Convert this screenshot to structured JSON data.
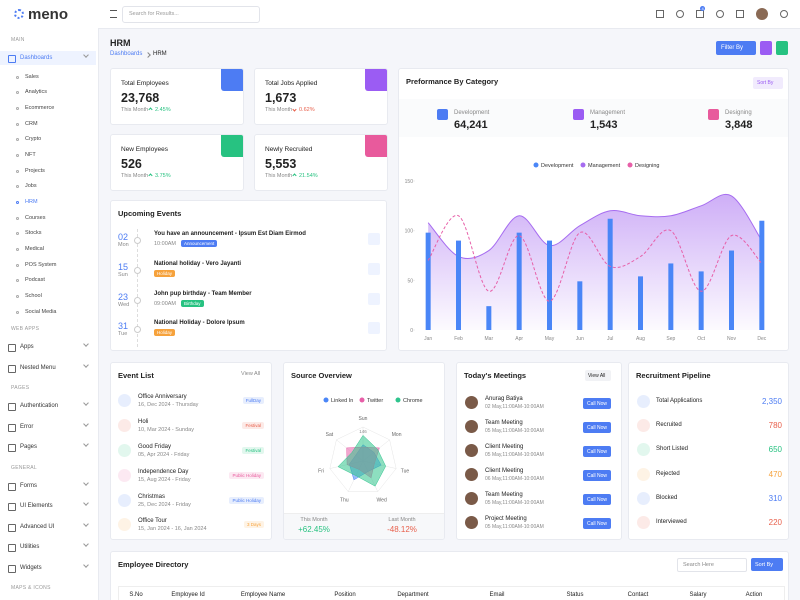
{
  "brand": "meno",
  "search_placeholder": "Search for Results...",
  "cart_badge": "4",
  "sidebar": {
    "active_item": 0,
    "active_subitem": 8,
    "groups": [
      {
        "heading": "MAIN",
        "items": [
          "Dashboards"
        ],
        "subitems": [
          "Sales",
          "Analytics",
          "Ecommerce",
          "CRM",
          "Crypto",
          "NFT",
          "Projects",
          "Jobs",
          "HRM",
          "Courses",
          "Stocks",
          "Medical",
          "POS System",
          "Podcast",
          "School",
          "Social Media"
        ]
      },
      {
        "heading": "WEB APPS",
        "items": [
          "Apps",
          "Nested Menu"
        ]
      },
      {
        "heading": "PAGES",
        "items": [
          "Authentication",
          "Error",
          "Pages"
        ]
      },
      {
        "heading": "GENERAL",
        "items": [
          "Forms",
          "UI Elements",
          "Advanced UI",
          "Utilities",
          "Widgets"
        ]
      },
      {
        "heading": "MAPS & ICONS",
        "items": []
      }
    ]
  },
  "page": {
    "title": "HRM",
    "breadcrumb": [
      "Dashboards",
      "HRM"
    ],
    "filter_button": "Filter By"
  },
  "stats": [
    {
      "label": "Total Employees",
      "value": "23,768",
      "period": "This Month",
      "change": "2.45%",
      "trend": "up",
      "color": "#4d7cf3"
    },
    {
      "label": "Total Jobs Applied",
      "value": "1,673",
      "period": "This Month",
      "change": "0.62%",
      "trend": "down",
      "color": "#9b5cf3"
    },
    {
      "label": "New Employees",
      "value": "526",
      "period": "This Month",
      "change": "3.75%",
      "trend": "up",
      "color": "#27c281"
    },
    {
      "label": "Newly Recruited",
      "value": "5,553",
      "period": "This Month",
      "change": "21.54%",
      "trend": "up",
      "color": "#e85a9c"
    }
  ],
  "performance": {
    "title": "Preformance By Category",
    "sort": "Sort By",
    "totals": [
      {
        "label": "Development",
        "value": "64,241",
        "color": "#4d7cf3"
      },
      {
        "label": "Management",
        "value": "1,543",
        "color": "#9b5cf3"
      },
      {
        "label": "Designing",
        "value": "3,848",
        "color": "#e85a9c"
      }
    ],
    "chart": {
      "type": "combo",
      "categories": [
        "Jan",
        "Feb",
        "Mar",
        "Apr",
        "May",
        "Jun",
        "Jul",
        "Aug",
        "Sep",
        "Oct",
        "Nov",
        "Dec"
      ],
      "ylim": [
        0,
        150
      ],
      "yticks": [
        0,
        50,
        100,
        150
      ],
      "series": [
        {
          "name": "Development",
          "type": "bar",
          "color": "#4a86f7",
          "values": [
            98,
            90,
            24,
            98,
            90,
            49,
            112,
            54,
            67,
            59,
            80,
            110
          ]
        },
        {
          "name": "Management",
          "type": "area",
          "color": "#a66cf0",
          "values": [
            108,
            74,
            80,
            115,
            85,
            105,
            120,
            115,
            115,
            125,
            135,
            90
          ]
        },
        {
          "name": "Designing",
          "type": "dashed-line",
          "color": "#e75fa8",
          "values": [
            70,
            115,
            39,
            95,
            29,
            98,
            64,
            74,
            100,
            39,
            95,
            67
          ]
        }
      ]
    }
  },
  "upcoming_events": {
    "title": "Upcoming Events",
    "items": [
      {
        "day": "02",
        "weekday": "Mon",
        "title": "You have an announcement - Ipsum Est Diam Eirmod",
        "time": "10:00AM",
        "tag": "Announcement",
        "tag_color": "#4d7cf3"
      },
      {
        "day": "15",
        "weekday": "Sun",
        "title": "National holiday - Vero Jayanti",
        "tag": "Holiday",
        "tag_color": "#f6a23c"
      },
      {
        "day": "23",
        "weekday": "Wed",
        "title": "John pup birthday - Team Member",
        "time": "09:00AM",
        "tag": "Birthday",
        "tag_color": "#27c281"
      },
      {
        "day": "31",
        "weekday": "Tue",
        "title": "National Holiday - Dolore Ipsum",
        "tag": "Holiday",
        "tag_color": "#f6a23c"
      }
    ]
  },
  "event_list": {
    "title": "Event List",
    "view_all": "View All",
    "items": [
      {
        "title": "Office Anniversary",
        "date": "16, Dec 2024 - Thursday",
        "tag": "FullDay",
        "color": "#4d7cf3"
      },
      {
        "title": "Holi",
        "date": "10, Mar 2024 - Sunday",
        "tag": "Festival",
        "color": "#e8604c"
      },
      {
        "title": "Good Friday",
        "date": "05, Apr 2024 - Friday",
        "tag": "Festival",
        "color": "#27c281"
      },
      {
        "title": "Independence Day",
        "date": "15, Aug 2024 - Friday",
        "tag": "Public Holiday",
        "color": "#e85a9c"
      },
      {
        "title": "Christmas",
        "date": "25, Dec 2024 - Friday",
        "tag": "Public Holiday",
        "color": "#4d7cf3"
      },
      {
        "title": "Office Tour",
        "date": "15, Jan 2024 - 16, Jan 2024",
        "tag": "3 Days",
        "color": "#f6a23c"
      }
    ]
  },
  "source_overview": {
    "title": "Source Overview",
    "chart": {
      "type": "radar",
      "axes": [
        "Sun",
        "Mon",
        "Tue",
        "Wed",
        "Thu",
        "Fri",
        "Sat"
      ],
      "rlim": [
        0,
        146
      ],
      "rticks": [
        146
      ],
      "series": [
        {
          "name": "Linked In",
          "color": "#4a86f7",
          "values": [
            70,
            60,
            80,
            50,
            90,
            60,
            40
          ]
        },
        {
          "name": "Twitter",
          "color": "#e75fa8",
          "values": [
            60,
            90,
            50,
            80,
            40,
            70,
            90
          ]
        },
        {
          "name": "Chrome",
          "color": "#2fc48d",
          "values": [
            110,
            80,
            100,
            120,
            70,
            110,
            60
          ]
        }
      ]
    },
    "footer": [
      {
        "label": "This Month",
        "value": "+62.45%",
        "color": "#27c281"
      },
      {
        "label": "Last Month",
        "value": "-48.12%",
        "color": "#e8604c"
      }
    ]
  },
  "meetings": {
    "title": "Today's Meetings",
    "view_all": "View All",
    "action": "Call Now",
    "items": [
      {
        "name": "Anurag Batiya",
        "time": "02 May,11:00AM-10:00AM"
      },
      {
        "name": "Team Meeting",
        "time": "05 May,11:00AM-10:00AM"
      },
      {
        "name": "Client Meeting",
        "time": "05 May,11:00AM-10:00AM"
      },
      {
        "name": "Client Meeting",
        "time": "06 May,11:00AM-10:00AM"
      },
      {
        "name": "Team Meeting",
        "time": "05 May,11:00AM-10:00AM"
      },
      {
        "name": "Project Meeting",
        "time": "05 May,11:00AM-10:00AM"
      }
    ]
  },
  "pipeline": {
    "title": "Recruitment Pipeline",
    "items": [
      {
        "label": "Total Applications",
        "value": "2,350",
        "color": "#4d7cf3"
      },
      {
        "label": "Recruited",
        "value": "780",
        "color": "#e8604c"
      },
      {
        "label": "Short Listed",
        "value": "650",
        "color": "#27c281"
      },
      {
        "label": "Rejected",
        "value": "470",
        "color": "#f6a23c"
      },
      {
        "label": "Blocked",
        "value": "310",
        "color": "#4d7cf3"
      },
      {
        "label": "Interviewed",
        "value": "220",
        "color": "#e8604c"
      }
    ]
  },
  "directory": {
    "title": "Employee Directory",
    "search_placeholder": "Search Here",
    "sort": "Sort By",
    "columns": [
      "S.No",
      "Employee Id",
      "Employee Name",
      "Position",
      "Department",
      "Email",
      "Status",
      "Contact",
      "Salary",
      "Action"
    ]
  }
}
